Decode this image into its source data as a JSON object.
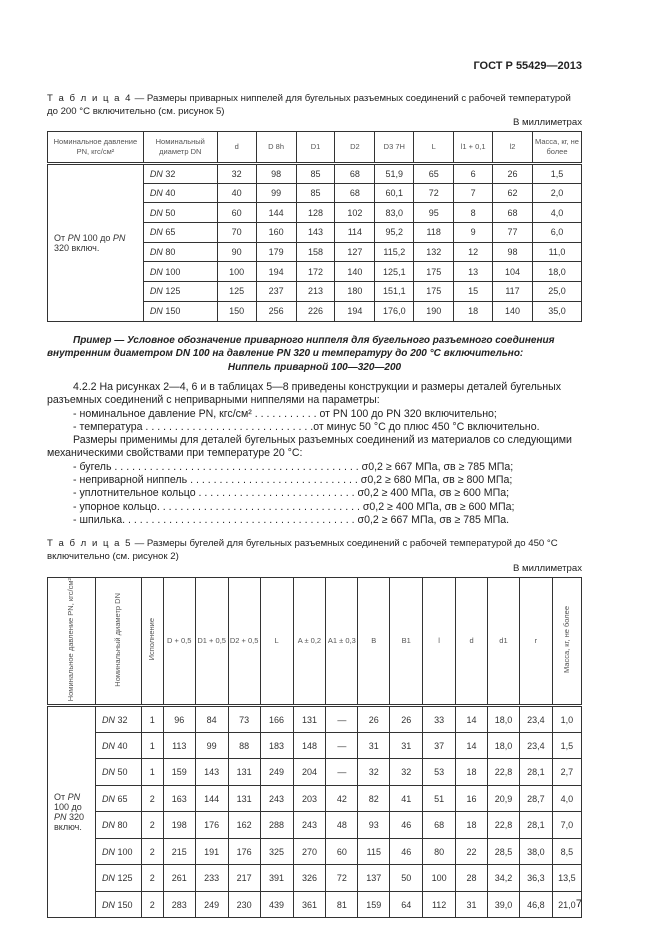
{
  "header": {
    "standard": "ГОСТ Р 55429—2013"
  },
  "table4": {
    "caption_label": "Т а б л и ц а  4",
    "caption_text": " — Размеры приварных ниппелей для бугельных разъемных соединений с рабочей температурой до 200 °С включительно (см. рисунок 5)",
    "unit": "В миллиметрах",
    "columns": [
      "Номинальное давление PN, кгс/см²",
      "Номинальный диаметр DN",
      "d",
      "D 8h",
      "D1",
      "D2",
      "D3 7H",
      "L",
      "l1 + 0,1",
      "l2",
      "Масса, кг, не более"
    ],
    "pressure": "От PN 100 до PN 320 включ.",
    "rows": [
      [
        "DN 32",
        "32",
        "98",
        "85",
        "68",
        "51,9",
        "65",
        "6",
        "26",
        "1,5"
      ],
      [
        "DN 40",
        "40",
        "99",
        "85",
        "68",
        "60,1",
        "72",
        "7",
        "62",
        "2,0"
      ],
      [
        "DN 50",
        "60",
        "144",
        "128",
        "102",
        "83,0",
        "95",
        "8",
        "68",
        "4,0"
      ],
      [
        "DN 65",
        "70",
        "160",
        "143",
        "114",
        "95,2",
        "118",
        "9",
        "77",
        "6,0"
      ],
      [
        "DN 80",
        "90",
        "179",
        "158",
        "127",
        "115,2",
        "132",
        "12",
        "98",
        "11,0"
      ],
      [
        "DN 100",
        "100",
        "194",
        "172",
        "140",
        "125,1",
        "175",
        "13",
        "104",
        "18,0"
      ],
      [
        "DN 125",
        "125",
        "237",
        "213",
        "180",
        "151,1",
        "175",
        "15",
        "117",
        "25,0"
      ],
      [
        "DN 150",
        "150",
        "256",
        "226",
        "194",
        "176,0",
        "190",
        "18",
        "140",
        "35,0"
      ]
    ]
  },
  "example": {
    "text": "Пример — Условное обозначение приварного ниппеля для бугельного разъемного соединения внутренним диаметром DN 100 на давление PN 320 и температуру до 200 °С включительно:",
    "designation": "Ниппель приварной 100—320—200"
  },
  "section": {
    "p1": "4.2.2 На рисунках 2—4, 6 и в таблицах 5—8 приведены конструкции и размеры деталей бугельных разъемных соединений с неприварными ниппелями на параметры:",
    "params": [
      "- номинальное давление PN, кгс/см² . . . . . . . . . . . от PN 100 до PN 320 включительно;",
      "- температура . . . . . . . . . . . . . . . . . . . . . . . . . . . . .от минус 50 °С до плюс 450 °С включительно."
    ],
    "p2": "Размеры применимы для деталей бугельных разъемных соединений из материалов со следующими механическими свойствами при температуре 20 °С:",
    "materials": [
      "- бугель . . . . . . . . . . . . . . . . . . . . . . . . . . . . . . . . . . . . . . . . . . σ0,2 ≥ 667 МПа, σв ≥ 785 МПа;",
      "- неприварной ниппель . . . . . . . . . . . . . . . . . . . . . . . . . . . . . σ0,2 ≥ 680 МПа, σв ≥ 800 МПа;",
      "- уплотнительное кольцо . . . . . . . . . . . . . . . . . . . . . . . . . . . σ0,2 ≥ 400 МПа, σв ≥ 600 МПа;",
      "- упорное кольцо. . . . . . . . . . . . . . . . . . . . . . . . . . . . . . . . . . . σ0,2 ≥ 400 МПа, σв ≥ 600 МПа;",
      "- шпилька. . . . . . . . . . . . . . . . . . . . . . . . . . . . . . . . . . . . . . . . σ0,2 ≥ 667 МПа, σв ≥ 785 МПа."
    ]
  },
  "table5": {
    "caption_label": "Т а б л и ц а  5",
    "caption_text": " — Размеры бугелей для бугельных разъемных соединений с рабочей температурой до 450 °С включительно (см. рисунок 2)",
    "unit": "В миллиметрах",
    "columns": [
      "Номинальное давление PN, кгс/см²",
      "Номинальный диаметр DN",
      "Исполнение",
      "D + 0,5",
      "D1 + 0,5",
      "D2 + 0,5",
      "L",
      "A ± 0,2",
      "A1 ± 0,3",
      "B",
      "B1",
      "l",
      "d",
      "d1",
      "r",
      "Масса, кг, не более"
    ],
    "pressure": "От PN 100 до PN 320 включ.",
    "rows": [
      [
        "DN 32",
        "1",
        "96",
        "84",
        "73",
        "166",
        "131",
        "—",
        "26",
        "26",
        "33",
        "14",
        "18,0",
        "23,4",
        "1,0"
      ],
      [
        "DN 40",
        "1",
        "113",
        "99",
        "88",
        "183",
        "148",
        "—",
        "31",
        "31",
        "37",
        "14",
        "18,0",
        "23,4",
        "1,5"
      ],
      [
        "DN 50",
        "1",
        "159",
        "143",
        "131",
        "249",
        "204",
        "—",
        "32",
        "32",
        "53",
        "18",
        "22,8",
        "28,1",
        "2,7"
      ],
      [
        "DN 65",
        "2",
        "163",
        "144",
        "131",
        "243",
        "203",
        "42",
        "82",
        "41",
        "51",
        "16",
        "20,9",
        "28,7",
        "4,0"
      ],
      [
        "DN 80",
        "2",
        "198",
        "176",
        "162",
        "288",
        "243",
        "48",
        "93",
        "46",
        "68",
        "18",
        "22,8",
        "28,1",
        "7,0"
      ],
      [
        "DN 100",
        "2",
        "215",
        "191",
        "176",
        "325",
        "270",
        "60",
        "115",
        "46",
        "80",
        "22",
        "28,5",
        "38,0",
        "8,5"
      ],
      [
        "DN 125",
        "2",
        "261",
        "233",
        "217",
        "391",
        "326",
        "72",
        "137",
        "50",
        "100",
        "28",
        "34,2",
        "36,3",
        "13,5"
      ],
      [
        "DN 150",
        "2",
        "283",
        "249",
        "230",
        "439",
        "361",
        "81",
        "159",
        "64",
        "112",
        "31",
        "39,0",
        "46,8",
        "21,0"
      ]
    ]
  },
  "page_number": "7"
}
